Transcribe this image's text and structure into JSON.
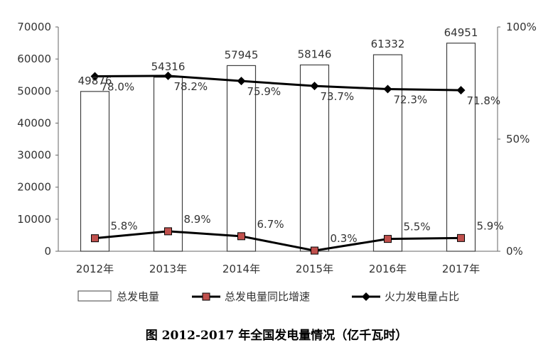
{
  "chart_data": {
    "type": "bar",
    "categories": [
      "2012年",
      "2013年",
      "2014年",
      "2015年",
      "2016年",
      "2017年"
    ],
    "y_left": {
      "range": [
        0,
        70000
      ],
      "ticks": [
        "0",
        "10000",
        "20000",
        "30000",
        "40000",
        "50000",
        "60000",
        "70000"
      ]
    },
    "y_right": {
      "range": [
        0,
        100
      ],
      "ticks": [
        "0%",
        "50%",
        "100%"
      ]
    },
    "series": [
      {
        "name": "总发电量",
        "type": "bar",
        "axis": "left",
        "values": [
          49876,
          54316,
          57945,
          58146,
          61332,
          64951
        ],
        "labels": [
          "49876",
          "54316",
          "57945",
          "58146",
          "61332",
          "64951"
        ]
      },
      {
        "name": "总发电量同比增速",
        "type": "line",
        "axis": "right",
        "marker": "square",
        "values": [
          5.8,
          8.9,
          6.7,
          0.3,
          5.5,
          5.9
        ],
        "labels": [
          "5.8%",
          "8.9%",
          "6.7%",
          "0.3%",
          "5.5%",
          "5.9%"
        ]
      },
      {
        "name": "火力发电量占比",
        "type": "line",
        "axis": "right",
        "marker": "diamond",
        "values": [
          78.0,
          78.2,
          75.9,
          73.7,
          72.3,
          71.8
        ],
        "labels": [
          "78.0%",
          "78.2%",
          "75.9%",
          "73.7%",
          "72.3%",
          "71.8%"
        ]
      }
    ],
    "colors": {
      "bar_fill": "#ffffff",
      "bar_stroke": "#404040",
      "growth_marker": "#c0504d",
      "line": "#000000"
    },
    "grid": false,
    "legend_position": "bottom"
  },
  "caption": "图  2012-2017 年全国发电量情况（亿千瓦时）"
}
